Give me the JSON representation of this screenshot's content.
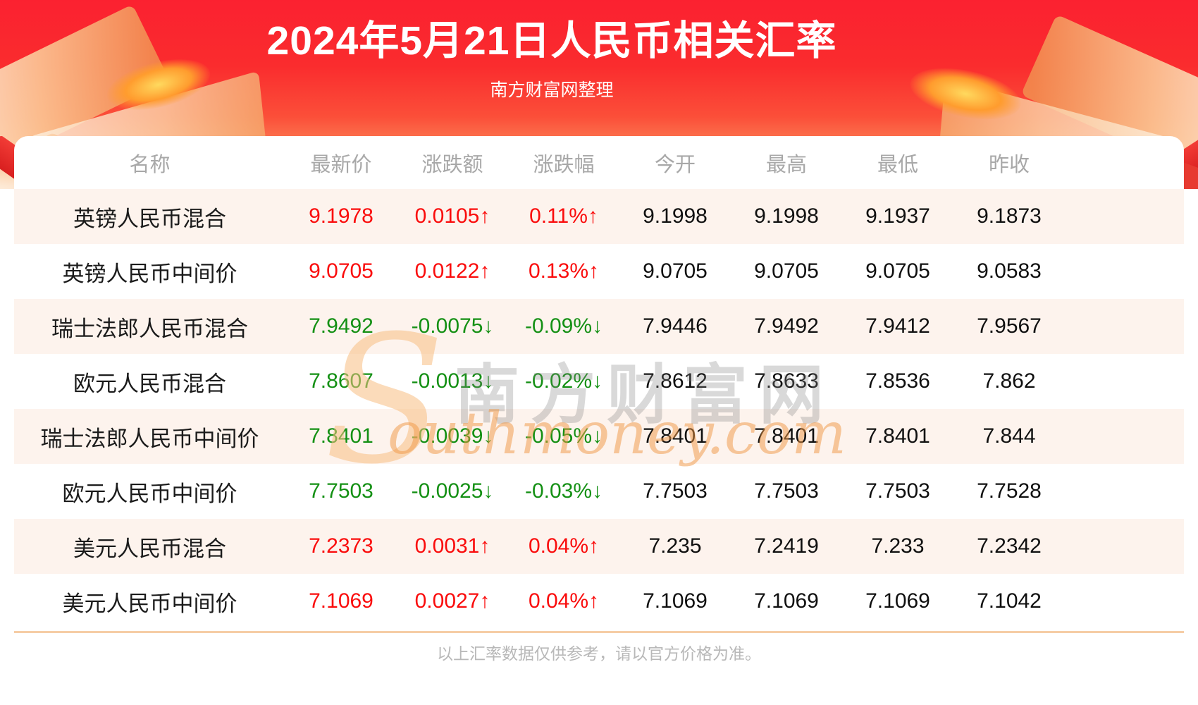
{
  "header": {
    "title": "2024年5月21日人民币相关汇率",
    "subtitle": "南方财富网整理"
  },
  "chart_data": {
    "type": "table",
    "title": "2024年5月21日人民币相关汇率",
    "columns": [
      "名称",
      "最新价",
      "涨跌额",
      "涨跌幅",
      "今开",
      "最高",
      "最低",
      "昨收"
    ],
    "rows": [
      [
        "英镑人民币混合",
        "9.1978",
        "0.0105↑",
        "0.11%↑",
        "9.1998",
        "9.1998",
        "9.1937",
        "9.1873"
      ],
      [
        "英镑人民币中间价",
        "9.0705",
        "0.0122↑",
        "0.13%↑",
        "9.0705",
        "9.0705",
        "9.0705",
        "9.0583"
      ],
      [
        "瑞士法郎人民币混合",
        "7.9492",
        "-0.0075↓",
        "-0.09%↓",
        "7.9446",
        "7.9492",
        "7.9412",
        "7.9567"
      ],
      [
        "欧元人民币混合",
        "7.8607",
        "-0.0013↓",
        "-0.02%↓",
        "7.8612",
        "7.8633",
        "7.8536",
        "7.862"
      ],
      [
        "瑞士法郎人民币中间价",
        "7.8401",
        "-0.0039↓",
        "-0.05%↓",
        "7.8401",
        "7.8401",
        "7.8401",
        "7.844"
      ],
      [
        "欧元人民币中间价",
        "7.7503",
        "-0.0025↓",
        "-0.03%↓",
        "7.7503",
        "7.7503",
        "7.7503",
        "7.7528"
      ],
      [
        "美元人民币混合",
        "7.2373",
        "0.0031↑",
        "0.04%↑",
        "7.235",
        "7.2419",
        "7.233",
        "7.2342"
      ],
      [
        "美元人民币中间价",
        "7.1069",
        "0.0027↑",
        "0.04%↑",
        "7.1069",
        "7.1069",
        "7.1069",
        "7.1042"
      ]
    ]
  },
  "watermark": {
    "big_s": "S",
    "cn": "南方财富网",
    "en": "outhmoney.com"
  },
  "footer": {
    "note": "以上汇率数据仅供参考，请以官方价格为准。"
  },
  "colors": {
    "up": "#fa0c0c",
    "down": "#149014",
    "stripe": "#fdf3ed",
    "banner_top": "#fb2130",
    "divider": "#f6cda6",
    "header_text": "#a8a8a8"
  }
}
